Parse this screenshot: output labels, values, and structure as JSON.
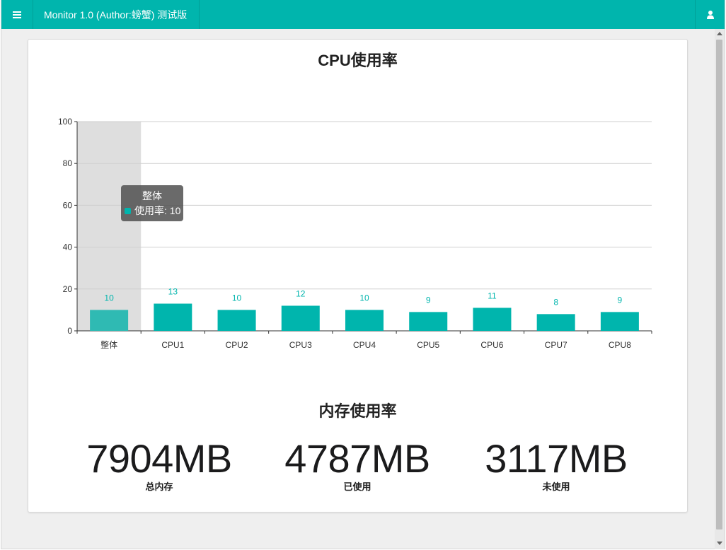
{
  "navbar": {
    "title": "Monitor 1.0 (Author:螃蟹) 测试版",
    "menu_icon": "hamburger-icon",
    "user_icon": "user-icon",
    "color": "#00b5ad"
  },
  "cpu_section": {
    "title": "CPU使用率"
  },
  "chart_data": {
    "type": "bar",
    "title": "CPU使用率",
    "categories": [
      "整体",
      "CPU1",
      "CPU2",
      "CPU3",
      "CPU4",
      "CPU5",
      "CPU6",
      "CPU7",
      "CPU8"
    ],
    "series": [
      {
        "name": "使用率",
        "values": [
          10,
          13,
          10,
          12,
          10,
          9,
          11,
          8,
          9
        ]
      }
    ],
    "ylim": [
      0,
      100
    ],
    "yticks": [
      0,
      20,
      40,
      60,
      80,
      100
    ],
    "grid": true,
    "bar_color": "#00b5ad",
    "highlight_color": "#2fbab3",
    "data_label_color": "#00b5ad",
    "highlighted_category": "整体"
  },
  "tooltip": {
    "title": "整体",
    "series_name": "使用率",
    "value": "10",
    "row_text": "使用率: 10"
  },
  "memory_section": {
    "title": "内存使用率",
    "stats": [
      {
        "value": "7904MB",
        "label": "总内存"
      },
      {
        "value": "4787MB",
        "label": "已使用"
      },
      {
        "value": "3117MB",
        "label": "未使用"
      }
    ]
  }
}
